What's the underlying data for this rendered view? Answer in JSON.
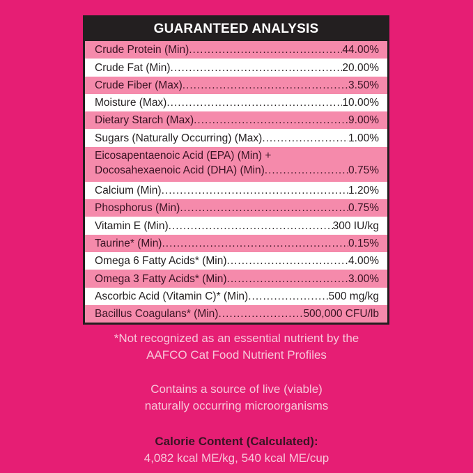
{
  "title": "GUARANTEED ANALYSIS",
  "rows": [
    {
      "label": "Crude Protein (Min)",
      "value": "44.00%"
    },
    {
      "label": "Crude Fat (Min)",
      "value": "20.00%"
    },
    {
      "label": "Crude Fiber (Max)",
      "value": "3.50%"
    },
    {
      "label": "Moisture (Max)",
      "value": "10.00%"
    },
    {
      "label": "Dietary Starch (Max)",
      "value": "9.00%"
    },
    {
      "label": "Sugars (Naturally Occurring) (Max)",
      "value": "1.00%"
    },
    {
      "label": "Eicosapentaenoic Acid (EPA) (Min) +",
      "label2": "Docosahexaenoic Acid (DHA) (Min)",
      "value": "0.75%"
    },
    {
      "label": "Calcium (Min)",
      "value": "1.20%"
    },
    {
      "label": "Phosphorus (Min)",
      "value": "0.75%"
    },
    {
      "label": "Vitamin E (Min)",
      "value": "300 IU/kg"
    },
    {
      "label": "Taurine* (Min)",
      "value": "0.15%"
    },
    {
      "label": "Omega 6 Fatty Acids* (Min)",
      "value": "4.00%"
    },
    {
      "label": "Omega 3 Fatty Acids* (Min)",
      "value": "3.00%"
    },
    {
      "label": "Ascorbic Acid (Vitamin C)* (Min)",
      "value": "500 mg/kg"
    },
    {
      "label": "Bacillus Coagulans* (Min)",
      "value": "500,000 CFU/lb"
    }
  ],
  "footnote": {
    "line1": "*Not recognized as an essential nutrient by the",
    "line2": "AAFCO Cat Food Nutrient Profiles"
  },
  "probiotic_note": {
    "line1": "Contains a source of live (viable)",
    "line2": "naturally occurring microorganisms"
  },
  "calorie": {
    "title": "Calorie Content (Calculated):",
    "value": "4,082 kcal ME/kg, 540 kcal ME/cup"
  },
  "colors": {
    "background": "#e61e74",
    "row_pink": "#f58aab",
    "row_white": "#ffffff",
    "header": "#231f20"
  }
}
